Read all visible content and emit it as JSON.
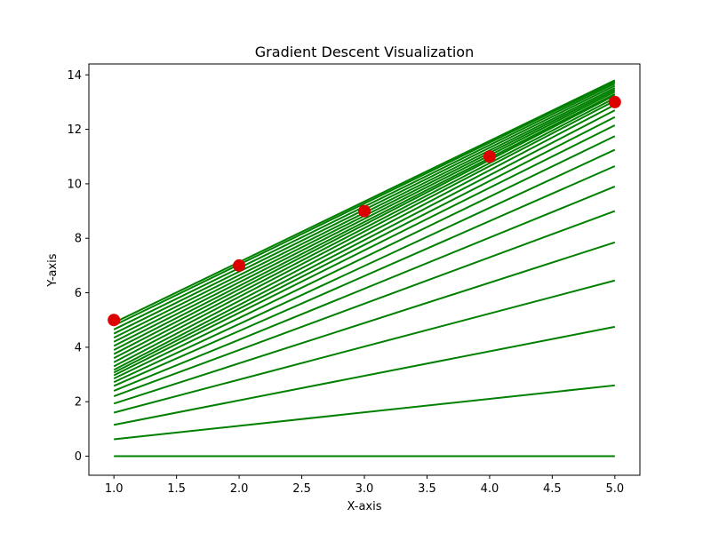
{
  "chart_data": {
    "type": "line",
    "title": "Gradient Descent Visualization",
    "xlabel": "X-axis",
    "ylabel": "Y-axis",
    "xlim": [
      0.8,
      5.2
    ],
    "ylim": [
      -0.7,
      14.4
    ],
    "grid": false,
    "x_ticks": [
      1.0,
      1.5,
      2.0,
      2.5,
      3.0,
      3.5,
      4.0,
      4.5,
      5.0
    ],
    "x_tick_labels": [
      "1.0",
      "1.5",
      "2.0",
      "2.5",
      "3.0",
      "3.5",
      "4.0",
      "4.5",
      "5.0"
    ],
    "y_ticks": [
      0,
      2,
      4,
      6,
      8,
      10,
      12,
      14
    ],
    "y_tick_labels": [
      "0",
      "2",
      "4",
      "6",
      "8",
      "10",
      "12",
      "14"
    ],
    "points": {
      "x": [
        1,
        2,
        3,
        4,
        5
      ],
      "y": [
        5,
        7,
        9,
        11,
        13
      ],
      "color": "#dd0000"
    },
    "fit_lines": {
      "x_range": [
        1,
        5
      ],
      "color": "#008000",
      "lines": [
        {
          "y_at_1": 0.0,
          "y_at_5": 0.0
        },
        {
          "y_at_1": 0.62,
          "y_at_5": 2.6
        },
        {
          "y_at_1": 1.15,
          "y_at_5": 4.75
        },
        {
          "y_at_1": 1.6,
          "y_at_5": 6.45
        },
        {
          "y_at_1": 1.93,
          "y_at_5": 7.85
        },
        {
          "y_at_1": 2.2,
          "y_at_5": 9.0
        },
        {
          "y_at_1": 2.4,
          "y_at_5": 9.9
        },
        {
          "y_at_1": 2.58,
          "y_at_5": 10.65
        },
        {
          "y_at_1": 2.72,
          "y_at_5": 11.25
        },
        {
          "y_at_1": 2.85,
          "y_at_5": 11.75
        },
        {
          "y_at_1": 2.97,
          "y_at_5": 12.15
        },
        {
          "y_at_1": 3.07,
          "y_at_5": 12.45
        },
        {
          "y_at_1": 3.17,
          "y_at_5": 12.7
        },
        {
          "y_at_1": 3.3,
          "y_at_5": 12.9
        },
        {
          "y_at_1": 3.45,
          "y_at_5": 13.05
        },
        {
          "y_at_1": 3.6,
          "y_at_5": 13.15
        },
        {
          "y_at_1": 3.75,
          "y_at_5": 13.25
        },
        {
          "y_at_1": 3.9,
          "y_at_5": 13.3
        },
        {
          "y_at_1": 4.05,
          "y_at_5": 13.38
        },
        {
          "y_at_1": 4.2,
          "y_at_5": 13.45
        },
        {
          "y_at_1": 4.35,
          "y_at_5": 13.52
        },
        {
          "y_at_1": 4.5,
          "y_at_5": 13.6
        },
        {
          "y_at_1": 4.65,
          "y_at_5": 13.68
        },
        {
          "y_at_1": 4.8,
          "y_at_5": 13.75
        },
        {
          "y_at_1": 4.9,
          "y_at_5": 13.8
        }
      ]
    }
  }
}
